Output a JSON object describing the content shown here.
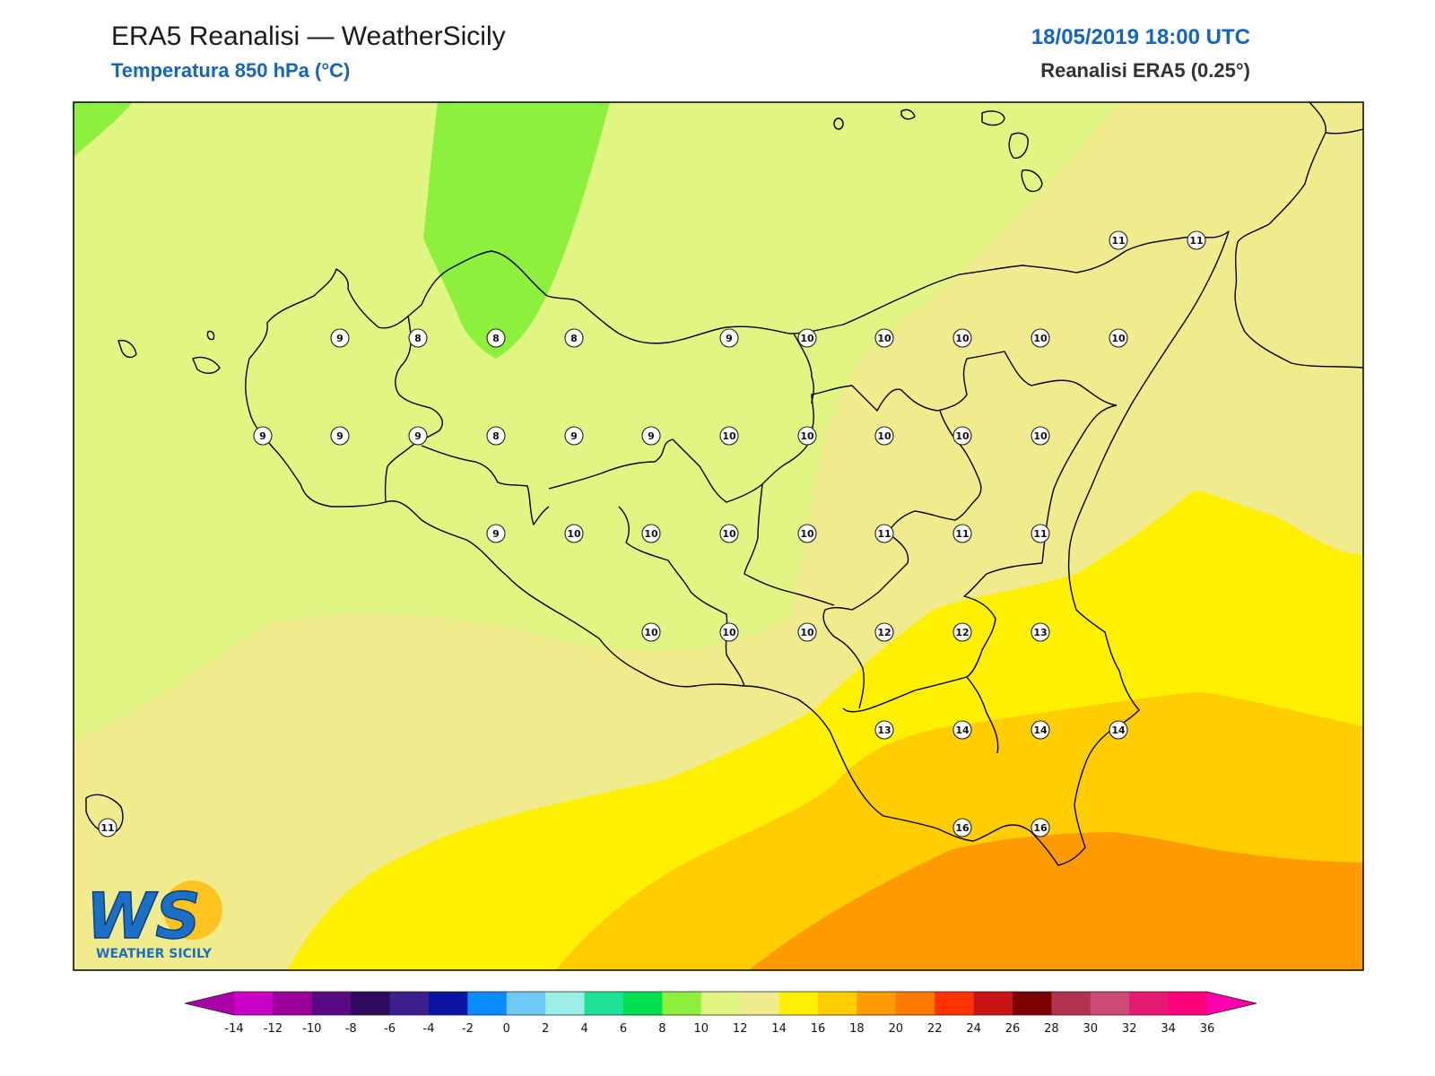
{
  "header": {
    "title": "ERA5 Reanalisi — WeatherSicily",
    "subtitle": "Temperatura 850 hPa (°C)",
    "datetime": "18/05/2019 18:00 UTC",
    "source": "Reanalisi ERA5 (0.25°)"
  },
  "logo": {
    "letters": "WS",
    "caption": "WEATHER SICILY"
  },
  "colorbar": {
    "ticks": [
      "-14",
      "-12",
      "-10",
      "-8",
      "-6",
      "-4",
      "-2",
      "0",
      "2",
      "4",
      "6",
      "8",
      "10",
      "12",
      "14",
      "16",
      "18",
      "20",
      "22",
      "24",
      "26",
      "28",
      "30",
      "32",
      "34",
      "36"
    ],
    "colors": [
      "#c800c8",
      "#9b009b",
      "#5a0a82",
      "#2e0a5e",
      "#3c1e8c",
      "#0a14a0",
      "#0a8cff",
      "#6ecaf5",
      "#9bf0e6",
      "#1ee196",
      "#00e150",
      "#8cf03c",
      "#e1f582",
      "#f0eb8c",
      "#fff000",
      "#ffcd00",
      "#ff9b00",
      "#ff7800",
      "#ff3200",
      "#c81414",
      "#7d0000",
      "#b43250",
      "#cd4b78",
      "#e61973",
      "#ff007d"
    ],
    "under_color": "#aa00aa",
    "over_color": "#ff00aa"
  },
  "map": {
    "background_color": "#e1f582",
    "station_values": [
      {
        "v": "11"
      },
      {
        "v": "11"
      },
      {
        "v": "9"
      },
      {
        "v": "8"
      },
      {
        "v": "8"
      },
      {
        "v": "8"
      },
      {
        "v": "9"
      },
      {
        "v": "10"
      },
      {
        "v": "10"
      },
      {
        "v": "10"
      },
      {
        "v": "10"
      },
      {
        "v": "10"
      },
      {
        "v": "9"
      },
      {
        "v": "9"
      },
      {
        "v": "9"
      },
      {
        "v": "8"
      },
      {
        "v": "9"
      },
      {
        "v": "9"
      },
      {
        "v": "10"
      },
      {
        "v": "10"
      },
      {
        "v": "10"
      },
      {
        "v": "10"
      },
      {
        "v": "10"
      },
      {
        "v": "9"
      },
      {
        "v": "10"
      },
      {
        "v": "10"
      },
      {
        "v": "10"
      },
      {
        "v": "10"
      },
      {
        "v": "11"
      },
      {
        "v": "11"
      },
      {
        "v": "11"
      },
      {
        "v": "10"
      },
      {
        "v": "10"
      },
      {
        "v": "10"
      },
      {
        "v": "12"
      },
      {
        "v": "12"
      },
      {
        "v": "13"
      },
      {
        "v": "13"
      },
      {
        "v": "14"
      },
      {
        "v": "14"
      },
      {
        "v": "14"
      },
      {
        "v": "11"
      },
      {
        "v": "16"
      },
      {
        "v": "16"
      }
    ]
  }
}
